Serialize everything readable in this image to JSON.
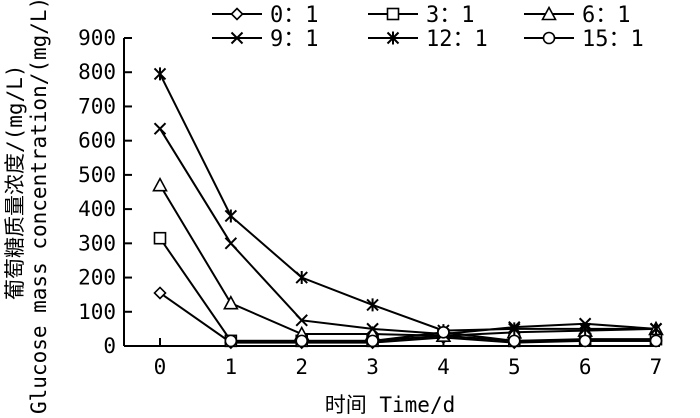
{
  "chart_data": {
    "type": "line",
    "xlabel": "时间 Time/d",
    "ylabel": "葡萄糖质量浓度/(mg/L)",
    "ylabel_en": "Glucose mass concentration/(mg/L)",
    "x": [
      0,
      1,
      2,
      3,
      4,
      5,
      6,
      7
    ],
    "xlim": [
      0,
      7
    ],
    "ylim": [
      0,
      900
    ],
    "y_ticks": [
      0,
      100,
      200,
      300,
      400,
      500,
      600,
      700,
      800,
      900
    ],
    "grid": false,
    "legend_position": "top",
    "series": [
      {
        "name": "0：1",
        "marker": "diamond",
        "values": [
          155,
          10,
          10,
          10,
          25,
          10,
          15,
          15
        ]
      },
      {
        "name": "3：1",
        "marker": "square",
        "values": [
          315,
          15,
          15,
          15,
          30,
          15,
          20,
          20
        ]
      },
      {
        "name": "6：1",
        "marker": "triangle",
        "values": [
          470,
          125,
          35,
          35,
          30,
          40,
          45,
          50
        ]
      },
      {
        "name": "9：1",
        "marker": "x",
        "values": [
          635,
          300,
          75,
          50,
          35,
          55,
          65,
          50
        ]
      },
      {
        "name": "12：1",
        "marker": "asterisk",
        "values": [
          795,
          380,
          200,
          120,
          45,
          50,
          50,
          50
        ]
      },
      {
        "name": "15：1",
        "marker": "circle",
        "values": [
          null,
          15,
          15,
          15,
          40,
          15,
          15,
          15
        ]
      }
    ]
  }
}
